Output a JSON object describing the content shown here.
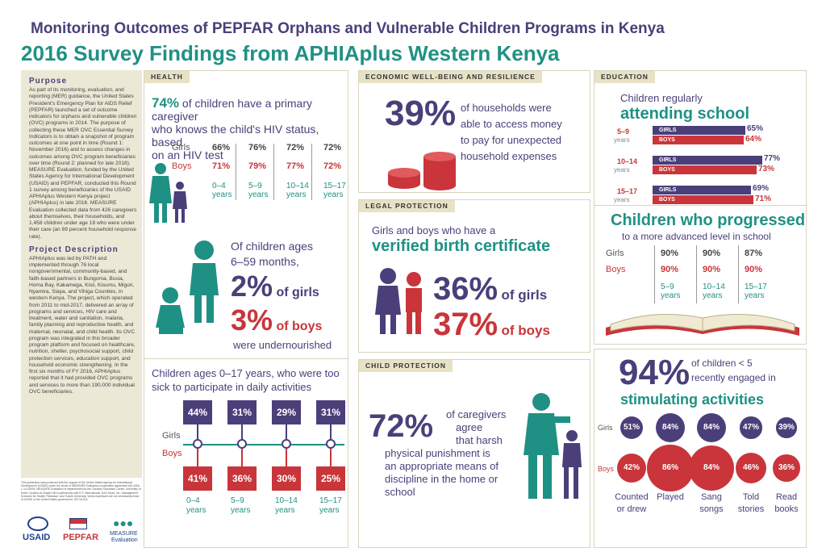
{
  "title": "Monitoring Outcomes of PEPFAR Orphans and Vulnerable Children Programs in Kenya",
  "subtitle": "2016 Survey Findings from APHIAplus Western Kenya",
  "sidebar": {
    "purpose_h": "Purpose",
    "purpose": "As part of its monitoring, evaluation, and reporting (MER) guidance, the United States President's Emergency Plan for AIDS Relief (PEPFAR) launched a set of outcome indicators for orphans and vulnerable children (OVC) programs in 2014. The purpose of collecting these MER OVC Essential Survey Indicators is to obtain a snapshot of program outcomes at one point in time (Round 1: November 2016) and to assess changes in outcomes among OVC program beneficiaries over time (Round 2: planned for late 2018). MEASURE Evaluation, funded by the United States Agency for International Development (USAID) and PEPFAR, conducted this Round 1 survey among beneficiaries of the USAID APHIAplus Western Kenya project (APHIAplus) in late 2016. MEASURE Evaluation collected data from 426 caregivers about themselves, their households, and 1,458 children under age 18 who were under their care (an 89 percent household response rate).",
    "desc_h": "Project Description",
    "desc": "APHIAplus was led by PATH and implemented through 76 local nongovernmental, community-based, and faith-based partners in Bungoma, Busia, Homa Bay, Kakamega, Kisii, Kisumu, Migori, Nyamira, Siaya, and Vihiga Counties, in western Kenya. The project, which operated from 2011 to mid-2017, delivered an array of programs and services, HIV care and treatment, water and sanitation, malaria, family planning and reproductive health, and maternal, neonatal, and child health. Its OVC program was integrated in this broader program platform and focused on healthcare, nutrition, shelter, psychosocial support, child protection services, education support, and household economic strengthening. In the first six months of FY 2016, APHIAplus reported that it had provided OVC programs and services to more than 190,000 individual OVC beneficiaries.",
    "footnote": "This publication was produced with the support of the United States Agency for International Development (USAID) under the terms of MEASURE Evaluation cooperative agreement AID-OAA-L-14-00004. MEASURE Evaluation is implemented by the Carolina Population Center, University of North Carolina at Chapel Hill in partnership with ICF International; John Snow, Inc.; Management Sciences for Health; Palladium; and Tulane University. Views expressed are not necessarily those of USAID or the United States government. GR-18-013",
    "logo1": "USAID",
    "logo2": "PEPFAR",
    "logo3a": "MEASURE",
    "logo3b": "Evaluation"
  },
  "health": {
    "tag": "HEALTH",
    "pct": "74%",
    "text1": " of children have a primary caregiver",
    "text2": "who knows the child's HIV status, based",
    "text3": "on an HIV test",
    "girls": "Girls",
    "boys": "Boys",
    "girls_vals": [
      "66%",
      "76%",
      "72%",
      "72%"
    ],
    "boys_vals": [
      "71%",
      "79%",
      "77%",
      "72%"
    ],
    "ages": [
      "0–4",
      "5–9",
      "10–14",
      "15–17"
    ],
    "years": "years",
    "nut1": "Of children ages",
    "nut2": "6–59 months,",
    "nut_g": "2%",
    "nut_g_t": "of girls",
    "nut_b": "3%",
    "nut_b_t": "of boys",
    "nut3": "were undernourished",
    "sick1": "Children ages 0–17 years, who were too",
    "sick2": "sick to participate in daily activities",
    "sick_girls": [
      "44%",
      "31%",
      "29%",
      "31%"
    ],
    "sick_boys": [
      "41%",
      "36%",
      "30%",
      "25%"
    ]
  },
  "econ": {
    "tag": "ECONOMIC WELL-BEING AND RESILIENCE",
    "pct": "39%",
    "l1": "of households were",
    "l2": "able to access money",
    "l3": "to pay for unexpected",
    "l4": "household expenses"
  },
  "legal": {
    "tag": "LEGAL PROTECTION",
    "l1": "Girls and boys who have a",
    "l2": "verified birth certificate",
    "g": "36%",
    "gt": "of girls",
    "b": "37%",
    "bt": "of boys"
  },
  "child": {
    "tag": "CHILD PROTECTION",
    "pct": "72%",
    "l1": "of caregivers",
    "l2": "agree",
    "l3": "that harsh",
    "l4": "physical punishment is",
    "l5": "an appropriate means of",
    "l6": "discipline in the home or",
    "l7": "school"
  },
  "edu": {
    "tag": "EDUCATION",
    "l1": "Children regularly",
    "l2": "attending school",
    "groups": [
      {
        "age": "5–9",
        "g": "65%",
        "b": "64%",
        "gv": 65,
        "bv": 64
      },
      {
        "age": "10–14",
        "g": "77%",
        "b": "73%",
        "gv": 77,
        "bv": 73
      },
      {
        "age": "15–17",
        "g": "69%",
        "b": "71%",
        "gv": 69,
        "bv": 71
      }
    ],
    "years": "years",
    "girls": "GIRLS",
    "boys": "BOYS",
    "prog1": "Children who progressed",
    "prog2": "to a more advanced level in school",
    "pg": [
      "90%",
      "90%",
      "87%"
    ],
    "pb": [
      "90%",
      "90%",
      "90%"
    ],
    "ages": [
      "5–9",
      "10–14",
      "15–17"
    ],
    "Girls": "Girls",
    "Boys": "Boys"
  },
  "stim": {
    "pct": "94%",
    "l1": "of children < 5",
    "l2": "recently engaged in",
    "l3": "stimulating activities",
    "girls": [
      "51%",
      "84%",
      "84%",
      "47%",
      "39%"
    ],
    "boys": [
      "42%",
      "86%",
      "84%",
      "46%",
      "36%"
    ],
    "gv": [
      51,
      84,
      84,
      47,
      39
    ],
    "bv": [
      42,
      86,
      84,
      46,
      36
    ],
    "labels": [
      "Counted or drew",
      "Played",
      "Sang songs",
      "Told stories",
      "Read books"
    ],
    "Girls": "Girls",
    "Boys": "Boys"
  },
  "colors": {
    "purple": "#4b3f7a",
    "red": "#c9353a",
    "teal": "#1f9184"
  }
}
